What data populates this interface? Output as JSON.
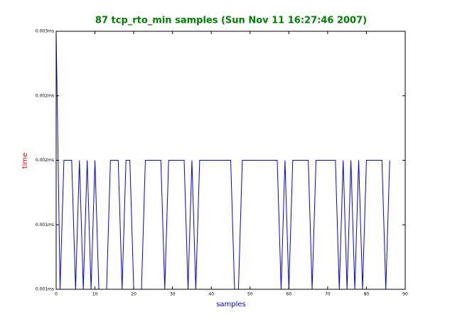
{
  "chart_data": {
    "type": "line",
    "title": "87 tcp_rto_min samples (Sun Nov 11 16:27:46 2007)",
    "xlabel": "samples",
    "ylabel": "time",
    "x": [
      0,
      1,
      2,
      3,
      4,
      5,
      6,
      7,
      8,
      9,
      10,
      11,
      12,
      13,
      14,
      15,
      16,
      17,
      18,
      19,
      20,
      21,
      22,
      23,
      24,
      25,
      26,
      27,
      28,
      29,
      30,
      31,
      32,
      33,
      34,
      35,
      36,
      37,
      38,
      39,
      40,
      41,
      42,
      43,
      44,
      45,
      46,
      47,
      48,
      49,
      50,
      51,
      52,
      53,
      54,
      55,
      56,
      57,
      58,
      59,
      60,
      61,
      62,
      63,
      64,
      65,
      66,
      67,
      68,
      69,
      70,
      71,
      72,
      73,
      74,
      75,
      76,
      77,
      78,
      79,
      80,
      81,
      82,
      83,
      84,
      85,
      86
    ],
    "series": [
      {
        "name": "tcp_rto_min",
        "color": "#0000ff",
        "values": [
          0.003,
          0.001,
          0.002,
          0.002,
          0.002,
          0.001,
          0.002,
          0.001,
          0.002,
          0.001,
          0.002,
          0.001,
          0.001,
          0.001,
          0.002,
          0.002,
          0.002,
          0.001,
          0.002,
          0.002,
          0.001,
          0.001,
          0.001,
          0.002,
          0.002,
          0.002,
          0.002,
          0.002,
          0.001,
          0.002,
          0.002,
          0.002,
          0.002,
          0.002,
          0.001,
          0.002,
          0.001,
          0.002,
          0.002,
          0.002,
          0.002,
          0.002,
          0.002,
          0.002,
          0.002,
          0.002,
          0.001,
          0.001,
          0.002,
          0.002,
          0.002,
          0.002,
          0.002,
          0.002,
          0.002,
          0.002,
          0.002,
          0.002,
          0.001,
          0.002,
          0.001,
          0.002,
          0.002,
          0.002,
          0.002,
          0.002,
          0.001,
          0.002,
          0.002,
          0.002,
          0.002,
          0.002,
          0.002,
          0.001,
          0.002,
          0.001,
          0.002,
          0.001,
          0.002,
          0.001,
          0.002,
          0.002,
          0.002,
          0.002,
          0.002,
          0.001,
          0.002
        ]
      }
    ],
    "xlim": [
      0,
      90
    ],
    "xticks": [
      0,
      10,
      20,
      30,
      40,
      50,
      60,
      70,
      80,
      90
    ],
    "ylim": [
      0.001,
      0.003
    ],
    "yticks": [
      {
        "value": 0.001,
        "label": "0.001ms"
      },
      {
        "value": 0.0015,
        "label": "0.001ms"
      },
      {
        "value": 0.002,
        "label": "0.002ms"
      },
      {
        "value": 0.0025,
        "label": "0.002ms"
      },
      {
        "value": 0.003,
        "label": "0.003ms"
      }
    ],
    "title_color": "#008000",
    "xlabel_color": "#0000ff",
    "ylabel_color": "#ff0000"
  }
}
